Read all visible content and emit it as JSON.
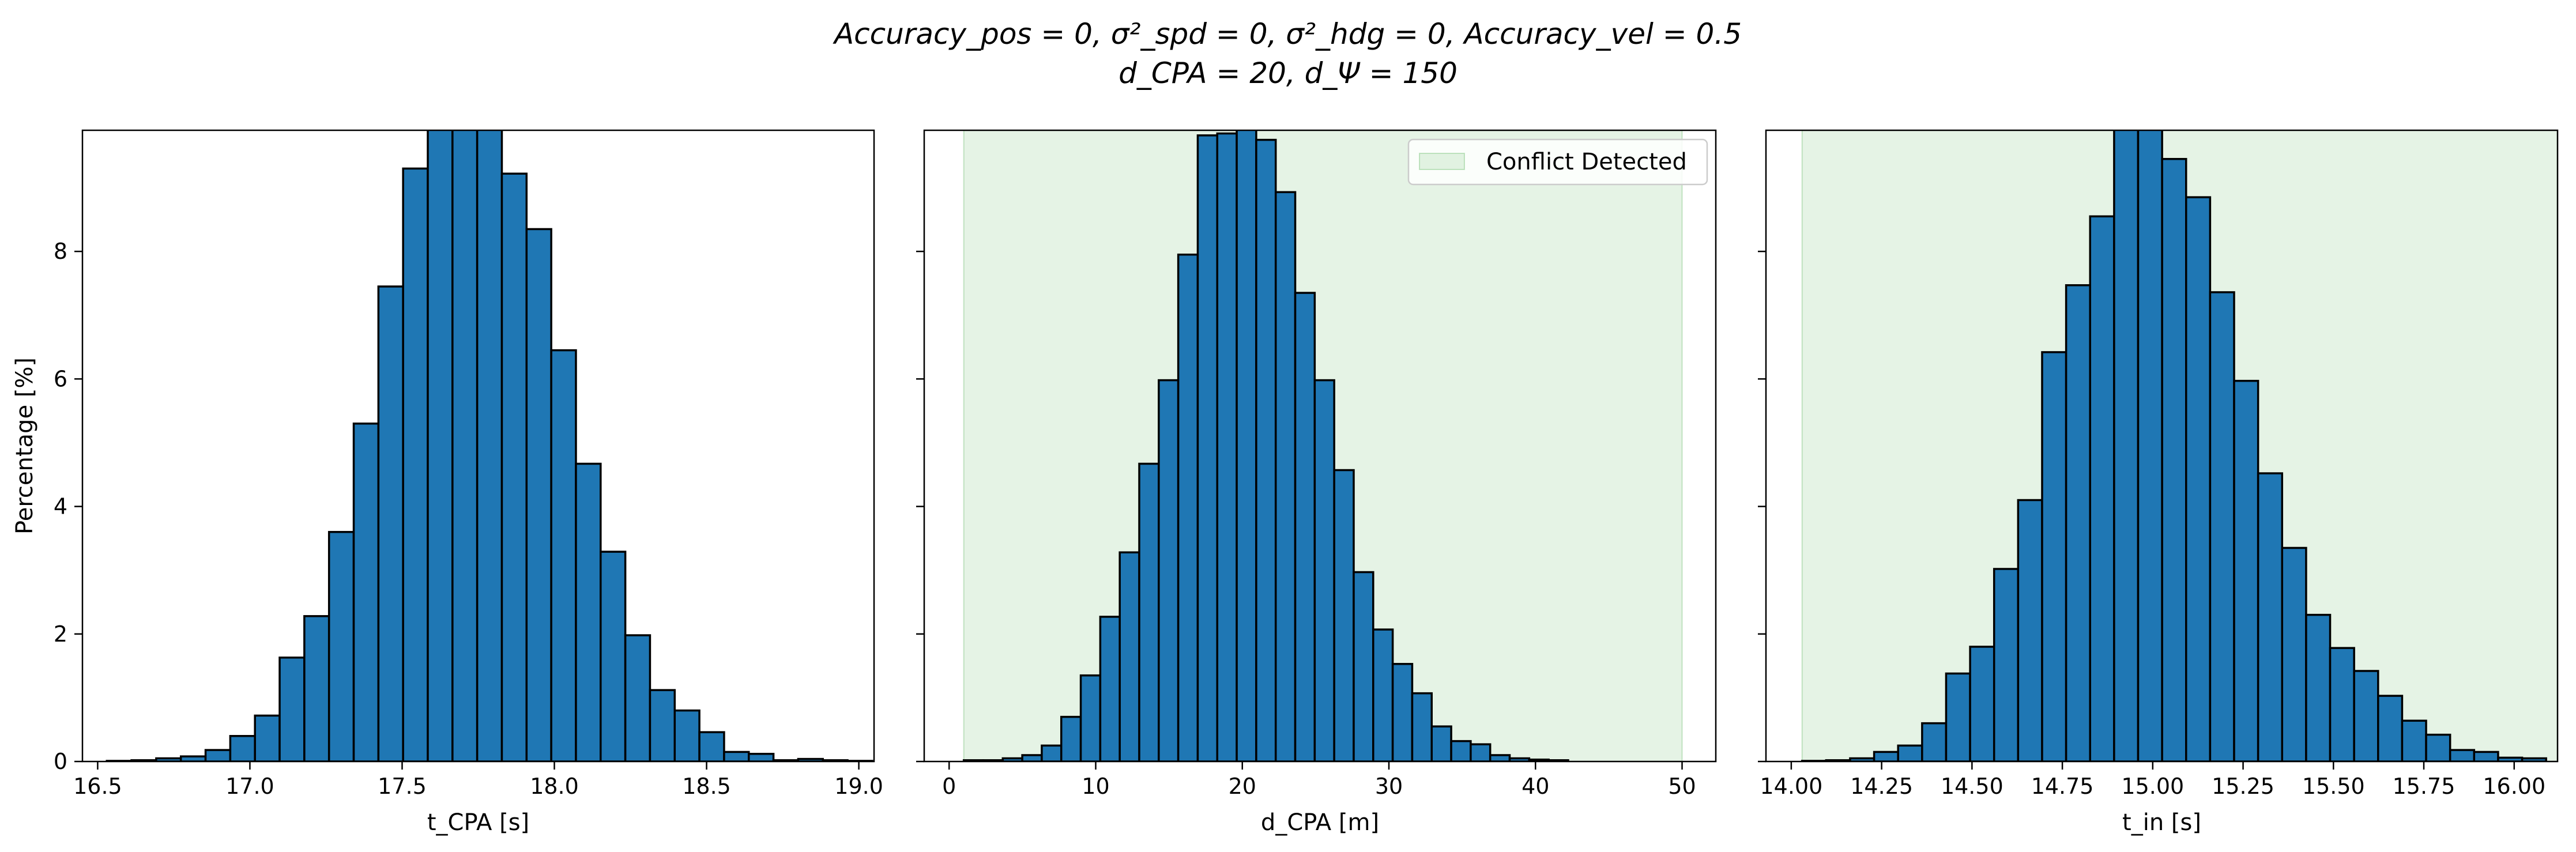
{
  "title_line1": "Accuracy_pos = 0, σ²_spd = 0, σ²_hdg = 0, Accuracy_vel = 0.5",
  "title_line2": "d_CPA = 20, d_Ψ = 150",
  "colors": {
    "bar": "#1f77b4",
    "edge": "#000000",
    "shade": "#2ca02c"
  },
  "chart_data": [
    {
      "type": "bar",
      "xlabel": "t_CPA [s]",
      "ylabel": "Percentage [%]",
      "xlim": [
        16.45,
        19.05
      ],
      "ylim": [
        0,
        9.9
      ],
      "xticks": [
        16.5,
        17.0,
        17.5,
        18.0,
        18.5,
        19.0
      ],
      "xtick_labels": [
        "16.5",
        "17.0",
        "17.5",
        "18.0",
        "18.5",
        "19.0"
      ],
      "yticks": [
        0,
        2,
        4,
        6,
        8
      ],
      "ytick_labels": [
        "0",
        "2",
        "4",
        "6",
        "8"
      ],
      "bin_start": 16.53,
      "bin_width": 0.0811,
      "values": [
        0.01,
        0.02,
        0.05,
        0.08,
        0.18,
        0.4,
        0.72,
        1.63,
        2.28,
        3.6,
        5.3,
        7.45,
        9.3,
        10.0,
        10.0,
        10.0,
        9.22,
        8.35,
        6.45,
        4.67,
        3.29,
        1.98,
        1.12,
        0.8,
        0.46,
        0.15,
        0.12,
        0.02,
        0.04,
        0.02,
        0.01
      ]
    },
    {
      "type": "bar",
      "xlabel": "d_CPA [m]",
      "xlim": [
        -1.7,
        52.3
      ],
      "ylim": [
        0,
        9.9
      ],
      "xticks": [
        0,
        10,
        20,
        30,
        40,
        50
      ],
      "xtick_labels": [
        "0",
        "10",
        "20",
        "30",
        "40",
        "50"
      ],
      "yticks": [
        0,
        2,
        4,
        6,
        8
      ],
      "shade_x": [
        1.0,
        50.0
      ],
      "legend": "Conflict Detected",
      "bin_start": 1.0,
      "bin_width": 1.33,
      "values": [
        0.02,
        0.02,
        0.05,
        0.1,
        0.25,
        0.7,
        1.35,
        2.27,
        3.28,
        4.67,
        5.98,
        7.95,
        9.82,
        9.85,
        9.95,
        9.75,
        8.93,
        7.35,
        5.98,
        4.57,
        2.97,
        2.07,
        1.53,
        1.07,
        0.55,
        0.32,
        0.27,
        0.1,
        0.05,
        0.03,
        0.02
      ]
    },
    {
      "type": "bar",
      "xlabel": "t_in [s]",
      "xlim": [
        13.93,
        16.12
      ],
      "ylim": [
        0,
        9.9
      ],
      "xticks": [
        14.0,
        14.25,
        14.5,
        14.75,
        15.0,
        15.25,
        15.5,
        15.75,
        16.0
      ],
      "xtick_labels": [
        "14.00",
        "14.25",
        "14.50",
        "14.75",
        "15.00",
        "15.25",
        "15.50",
        "15.75",
        "16.00"
      ],
      "yticks": [
        0,
        2,
        4,
        6,
        8
      ],
      "shade_x": [
        14.03,
        16.5
      ],
      "bin_start": 14.03,
      "bin_width": 0.0664,
      "values": [
        0.01,
        0.02,
        0.05,
        0.15,
        0.25,
        0.6,
        1.38,
        1.8,
        3.02,
        4.1,
        6.42,
        7.47,
        8.55,
        9.97,
        9.97,
        9.45,
        8.85,
        7.36,
        5.97,
        4.52,
        3.35,
        2.3,
        1.78,
        1.42,
        1.03,
        0.64,
        0.42,
        0.18,
        0.15,
        0.06,
        0.05
      ]
    }
  ]
}
